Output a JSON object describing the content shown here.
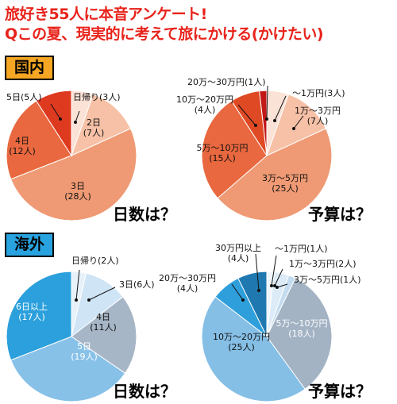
{
  "header": {
    "title_line1": "旅好き55人に本音アンケート!",
    "title_line2": "Qこの夏、現実的に考えて旅にかける(かけたい)"
  },
  "sections": {
    "domestic": {
      "label": "国内",
      "color": "#f5a623"
    },
    "overseas": {
      "label": "海外",
      "color": "#29a3e0"
    }
  },
  "questions": {
    "days": "日数は？",
    "budget": "予算は？"
  },
  "chart_data": [
    {
      "type": "pie",
      "section": "国内",
      "title": "日数は？",
      "slices": [
        {
          "label": "日帰り",
          "value": 3,
          "count": "(3人)",
          "color": "#fbe2d6"
        },
        {
          "label": "2日",
          "value": 7,
          "count": "(7人)",
          "color": "#f6c1a7"
        },
        {
          "label": "3日",
          "value": 28,
          "count": "(28人)",
          "color": "#ef9a74"
        },
        {
          "label": "4日",
          "value": 12,
          "count": "(12人)",
          "color": "#e9683f"
        },
        {
          "label": "5日",
          "value": 5,
          "count": "(5人)",
          "color": "#de3a1f"
        }
      ]
    },
    {
      "type": "pie",
      "section": "国内",
      "title": "予算は？",
      "slices": [
        {
          "label": "～1万円",
          "value": 3,
          "count": "(3人)",
          "color": "#fbe2d6"
        },
        {
          "label": "1万～3万円",
          "value": 7,
          "count": "(7人)",
          "color": "#f6c1a7"
        },
        {
          "label": "3万～5万円",
          "value": 25,
          "count": "(25人)",
          "color": "#ef9a74"
        },
        {
          "label": "5万～10万円",
          "value": 15,
          "count": "(15人)",
          "color": "#e9683f"
        },
        {
          "label": "10万～20万円",
          "value": 4,
          "count": "(4人)",
          "color": "#df4a24"
        },
        {
          "label": "20万～30万円",
          "value": 1,
          "count": "(1人)",
          "color": "#c21818"
        }
      ]
    },
    {
      "type": "pie",
      "section": "海外",
      "title": "日数は？",
      "slices": [
        {
          "label": "日帰り",
          "value": 2,
          "count": "(2人)",
          "color": "#e6f1fa"
        },
        {
          "label": "3日",
          "value": 6,
          "count": "(6人)",
          "color": "#cfe4f5"
        },
        {
          "label": "4日",
          "value": 11,
          "count": "(11人)",
          "color": "#a7b6c6"
        },
        {
          "label": "5日",
          "value": 19,
          "count": "(19人)",
          "color": "#88c1e8"
        },
        {
          "label": "6日以上",
          "value": 17,
          "count": "(17人)",
          "color": "#2ba0dc"
        }
      ]
    },
    {
      "type": "pie",
      "section": "海外",
      "title": "予算は？",
      "slices": [
        {
          "label": "～1万円",
          "value": 1,
          "count": "(1人)",
          "color": "#eef5fb"
        },
        {
          "label": "1万～3万円",
          "value": 2,
          "count": "(2人)",
          "color": "#dcebf7"
        },
        {
          "label": "3万～5万円",
          "value": 1,
          "count": "(1人)",
          "color": "#c4dcef"
        },
        {
          "label": "5万～10万円",
          "value": 18,
          "count": "(18人)",
          "color": "#a3b3c4"
        },
        {
          "label": "10万～20万円",
          "value": 25,
          "count": "(25人)",
          "color": "#86bfe6"
        },
        {
          "label": "20万～30万円",
          "value": 4,
          "count": "(4人)",
          "color": "#2e9fdb"
        },
        {
          "label": "30万円以上",
          "value": 4,
          "count": "(4人)",
          "color": "#1f79b0"
        }
      ]
    }
  ]
}
